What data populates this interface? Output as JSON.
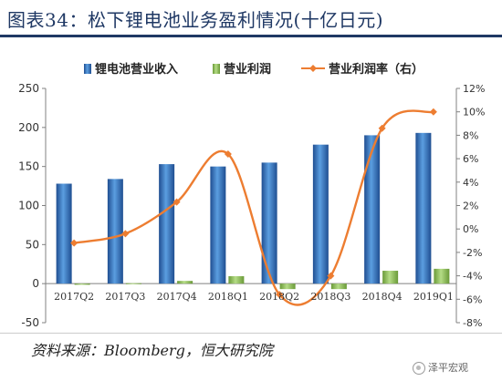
{
  "title": "图表34：松下锂电池业务盈利情况(十亿日元)",
  "source": "资料来源：Bloomberg，恒大研究院",
  "watermark": "泽平宏观",
  "chart_data": {
    "type": "bar+line",
    "categories": [
      "2017Q2",
      "2017Q3",
      "2017Q4",
      "2018Q1",
      "2018Q2",
      "2018Q3",
      "2018Q4",
      "2019Q1"
    ],
    "series": [
      {
        "name": "锂电池营业收入",
        "type": "bar",
        "axis": "left",
        "color": "#3d7dc6",
        "values": [
          128,
          134,
          153,
          150,
          155,
          178,
          190,
          193
        ]
      },
      {
        "name": "营业利润",
        "type": "bar",
        "axis": "left",
        "color": "#8fbf5a",
        "values": [
          -1.5,
          0.5,
          3.5,
          9.5,
          -7,
          -7,
          16.5,
          19
        ]
      },
      {
        "name": "营业利润率（右）",
        "type": "line",
        "axis": "right",
        "color": "#ed7d31",
        "values": [
          -1.2,
          -0.4,
          2.3,
          6.4,
          -5.6,
          -4.0,
          8.6,
          10.0
        ]
      }
    ],
    "y_left": {
      "min": -50,
      "max": 250,
      "ticks": [
        -50,
        0,
        50,
        100,
        150,
        200,
        250
      ]
    },
    "y_right": {
      "min": -8,
      "max": 12,
      "ticks": [
        "-8%",
        "-6%",
        "-4%",
        "-2%",
        "0%",
        "2%",
        "4%",
        "6%",
        "8%",
        "10%",
        "12%"
      ]
    },
    "legend_position": "top",
    "grid": false,
    "colors": {
      "title": "#1f3864",
      "axis": "#808080",
      "revenue_bar": "#3d7dc6",
      "profit_bar": "#8fbf5a",
      "margin_line": "#ed7d31"
    }
  }
}
